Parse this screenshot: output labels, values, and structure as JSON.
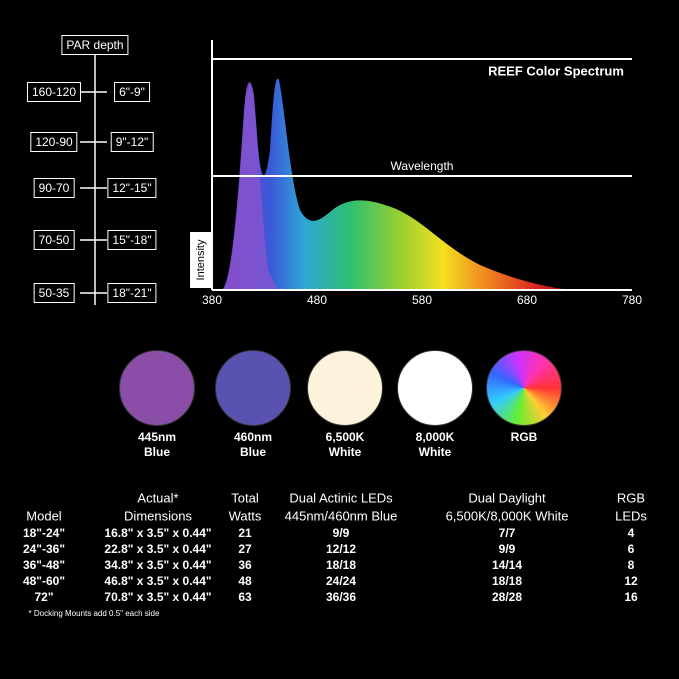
{
  "par": {
    "header": "PAR  depth",
    "rows": [
      [
        "160-120",
        "6\"-9\""
      ],
      [
        "120-90",
        "9\"-12\""
      ],
      [
        "90-70",
        "12\"-15\""
      ],
      [
        "70-50",
        "15\"-18\""
      ],
      [
        "50-35",
        "18\"-21\""
      ]
    ]
  },
  "spectrum": {
    "title": "REEF Color Spectrum",
    "x_label": "Wavelength",
    "y_label": "Intensity",
    "ticks": [
      "380",
      "480",
      "580",
      "680",
      "780"
    ]
  },
  "swatches": [
    [
      "445nm",
      "Blue"
    ],
    [
      "460nm",
      "Blue"
    ],
    [
      "6,500K",
      "White"
    ],
    [
      "8,000K",
      "White"
    ],
    [
      "RGB"
    ]
  ],
  "table": {
    "header": [
      [
        "",
        "Actual*",
        "Total",
        "Dual Actinic LEDs",
        "Dual Daylight",
        "RGB"
      ],
      [
        "Model",
        "Dimensions",
        "Watts",
        "445nm/460nm Blue",
        "6,500K/8,000K White",
        "LEDs"
      ]
    ],
    "rows": [
      [
        "18\"-24\"",
        "16.8\" x 3.5\" x 0.44\"",
        21,
        "9/9",
        "7/7",
        4
      ],
      [
        "24\"-36\"",
        "22.8\" x 3.5\" x 0.44\"",
        27,
        "12/12",
        "9/9",
        6
      ],
      [
        "36\"-48\"",
        "34.8\" x 3.5\" x 0.44\"",
        36,
        "18/18",
        "14/14",
        8
      ],
      [
        "48\"-60\"",
        "46.8\" x 3.5\" x 0.44\"",
        48,
        "24/24",
        "18/18",
        12
      ],
      [
        "72\"",
        "70.8\" x 3.5\" x 0.44\"",
        63,
        "36/36",
        "28/28",
        16
      ]
    ],
    "footnote": "* Docking Mounts add 0.5\" each side"
  }
}
